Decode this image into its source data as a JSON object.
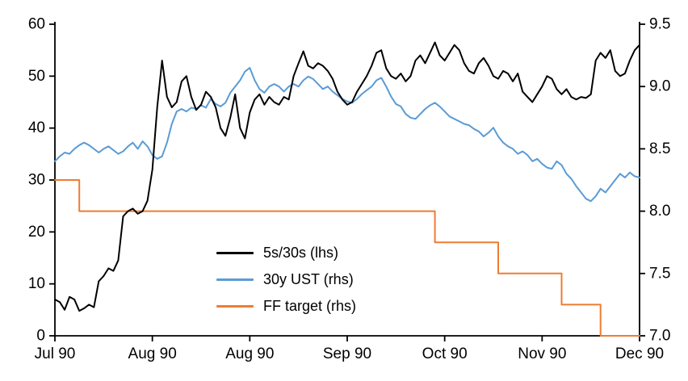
{
  "page": {
    "background": "#ffffff"
  },
  "chart_data": {
    "type": "line",
    "title": "",
    "x_unit": "weekday-index (Jul 1990 - Dec 1990)",
    "x_range": [
      0,
      120
    ],
    "x_ticks": [
      {
        "pos": 0,
        "label": "Jul 90"
      },
      {
        "pos": 20,
        "label": "Aug 90"
      },
      {
        "pos": 40,
        "label": "Aug 90"
      },
      {
        "pos": 60,
        "label": "Sep 90"
      },
      {
        "pos": 80,
        "label": "Oct 90"
      },
      {
        "pos": 100,
        "label": "Nov 90"
      },
      {
        "pos": 120,
        "label": "Dec 90"
      }
    ],
    "left_axis": {
      "min": 0,
      "max": 60,
      "ticks": [
        0,
        10,
        20,
        30,
        40,
        50,
        60
      ]
    },
    "right_axis": {
      "min": 7.0,
      "max": 9.5,
      "ticks": [
        "7.0",
        "7.5",
        "8.0",
        "8.5",
        "9.0",
        "9.5"
      ]
    },
    "grid": "off",
    "series": [
      {
        "name": "5s/30s (lhs)",
        "axis": "left",
        "color": "#000000",
        "width": 2,
        "values": [
          7,
          6.5,
          5,
          7.5,
          7,
          4.8,
          5.3,
          6,
          5.5,
          10.5,
          11.5,
          13,
          12.5,
          14.5,
          23,
          24,
          24.5,
          23.5,
          24,
          26,
          32,
          44,
          53,
          46,
          44,
          45,
          49,
          50,
          46,
          43.5,
          44.5,
          47,
          46,
          44,
          40,
          38.5,
          42,
          46.5,
          40,
          38,
          43,
          45.5,
          46.5,
          44.5,
          46,
          45,
          44.5,
          46,
          45.5,
          50,
          52.5,
          54.8,
          52,
          51.5,
          52.5,
          52,
          51,
          49.5,
          47,
          45.5,
          44.5,
          45,
          47,
          48.5,
          50,
          52,
          54.5,
          55,
          51.5,
          50,
          49.5,
          50.5,
          49,
          50,
          53,
          54,
          52.5,
          54.5,
          56.5,
          54,
          53,
          54.5,
          56,
          55,
          52.5,
          51,
          50.5,
          52.5,
          53.5,
          52,
          50,
          49.5,
          51,
          50.5,
          49,
          50.5,
          47,
          46,
          45,
          46.5,
          48,
          50,
          49.5,
          47.5,
          46.5,
          47.5,
          46,
          45.5,
          46,
          45.8,
          46.5,
          53,
          54.5,
          53.5,
          55,
          51,
          50,
          50.5,
          53,
          55,
          56
        ]
      },
      {
        "name": "30y UST (rhs)",
        "axis": "right",
        "color": "#5B9BD5",
        "width": 2,
        "values": [
          8.4,
          8.44,
          8.47,
          8.46,
          8.5,
          8.53,
          8.55,
          8.53,
          8.5,
          8.47,
          8.5,
          8.52,
          8.49,
          8.46,
          8.48,
          8.52,
          8.55,
          8.5,
          8.56,
          8.52,
          8.45,
          8.42,
          8.44,
          8.55,
          8.7,
          8.8,
          8.82,
          8.8,
          8.83,
          8.82,
          8.85,
          8.83,
          8.9,
          8.86,
          8.84,
          8.87,
          8.95,
          9.0,
          9.05,
          9.12,
          9.15,
          9.05,
          8.98,
          8.95,
          9.0,
          9.02,
          9.0,
          8.96,
          9.0,
          9.02,
          9.0,
          9.05,
          9.08,
          9.06,
          9.02,
          8.98,
          9.0,
          8.96,
          8.93,
          8.9,
          8.88,
          8.87,
          8.9,
          8.94,
          8.97,
          9.0,
          9.05,
          9.07,
          9.0,
          8.92,
          8.86,
          8.84,
          8.78,
          8.75,
          8.74,
          8.78,
          8.82,
          8.85,
          8.87,
          8.84,
          8.8,
          8.76,
          8.74,
          8.72,
          8.7,
          8.69,
          8.66,
          8.64,
          8.6,
          8.63,
          8.67,
          8.6,
          8.55,
          8.52,
          8.5,
          8.46,
          8.48,
          8.45,
          8.4,
          8.42,
          8.38,
          8.35,
          8.34,
          8.4,
          8.37,
          8.3,
          8.26,
          8.2,
          8.15,
          8.1,
          8.08,
          8.12,
          8.18,
          8.15,
          8.2,
          8.25,
          8.3,
          8.27,
          8.31,
          8.28,
          8.27
        ]
      },
      {
        "name": "FF target (rhs)",
        "axis": "right",
        "color": "#ED7D31",
        "width": 2,
        "steps": [
          [
            0,
            8.25
          ],
          [
            5,
            8.25
          ],
          [
            5,
            8.0
          ],
          [
            78,
            8.0
          ],
          [
            78,
            7.75
          ],
          [
            91,
            7.75
          ],
          [
            91,
            7.5
          ],
          [
            104,
            7.5
          ],
          [
            104,
            7.25
          ],
          [
            112,
            7.25
          ],
          [
            112,
            7.0
          ],
          [
            120,
            7.0
          ]
        ]
      }
    ],
    "legend": {
      "position": "inside-bottom-center",
      "entries": [
        {
          "label": "5s/30s (lhs)",
          "color": "#000000"
        },
        {
          "label": "30y UST (rhs)",
          "color": "#5B9BD5"
        },
        {
          "label": "FF target (rhs)",
          "color": "#ED7D31"
        }
      ]
    }
  }
}
